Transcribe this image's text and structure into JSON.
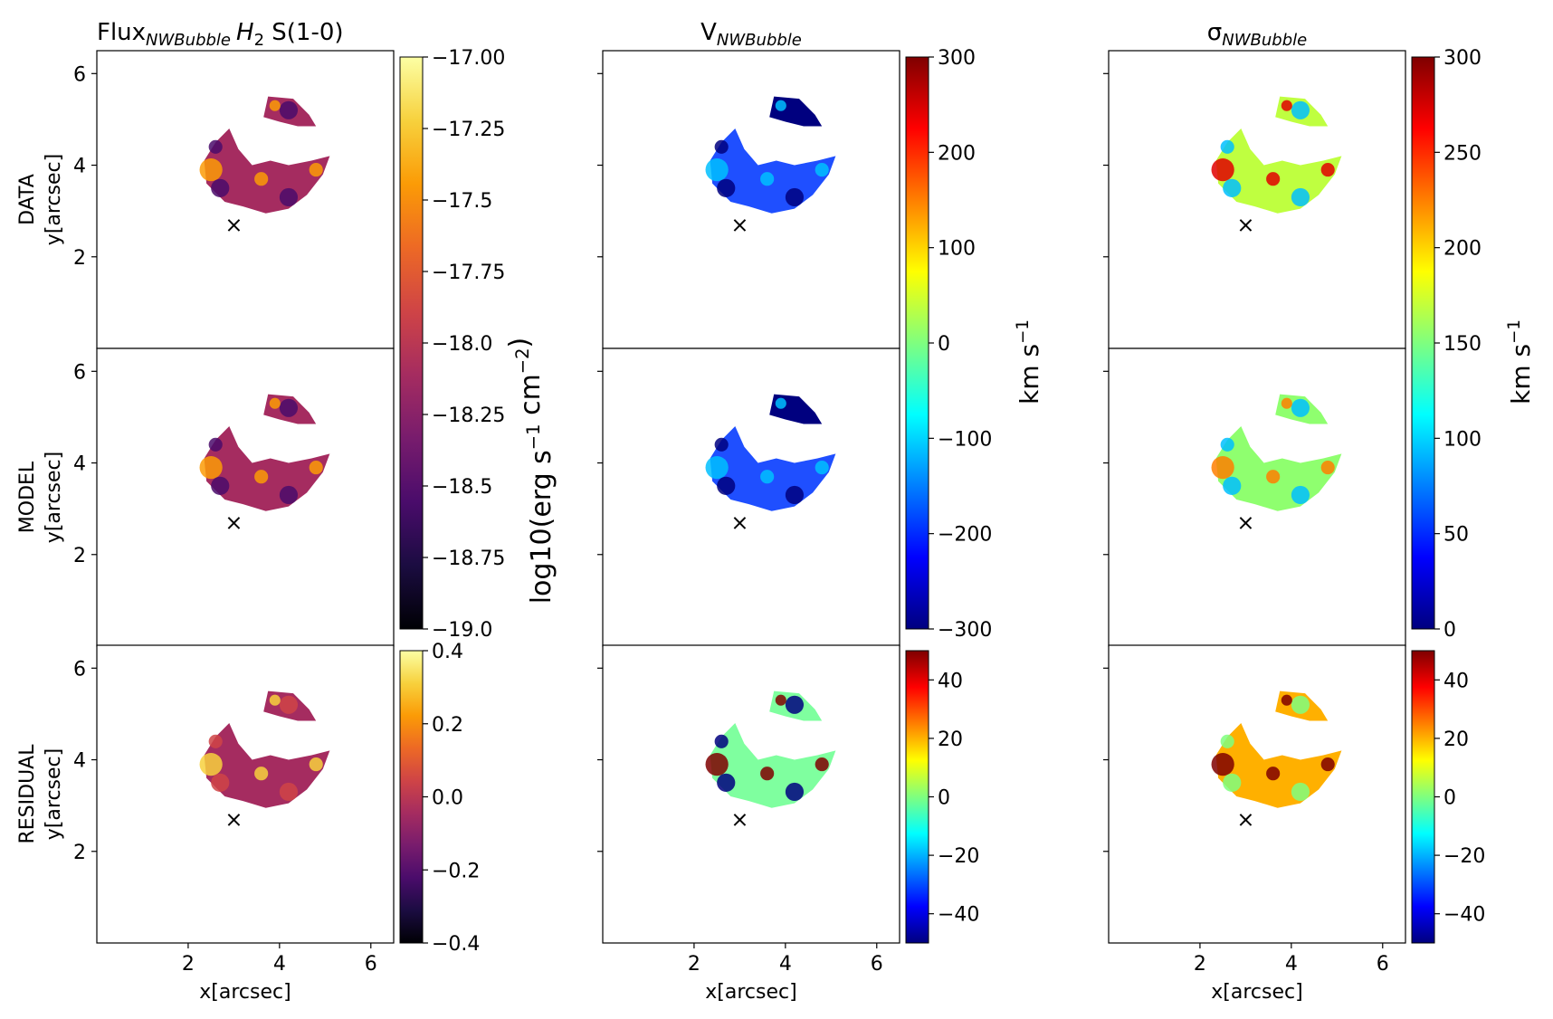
{
  "chart_data": {
    "type": "heatmap",
    "layout": {
      "rows": 3,
      "columns": 3
    },
    "columns": [
      {
        "title": {
          "main": "Flux",
          "sub": "NWBubble",
          "tail_italic": "H",
          "tail_sub": "2",
          "tail": " S(1-0)"
        },
        "colormap": "inferno",
        "colorbars": [
          {
            "span_rows": [
              "DATA",
              "MODEL"
            ],
            "range": [
              -19.0,
              -17.0
            ],
            "ticks": [
              "-17.00",
              "-17.25",
              "-17.5",
              "-17.75",
              "-18.0",
              "-18.25",
              "-18.5",
              "-18.75",
              "-19.0"
            ],
            "tick_values": [
              -17.0,
              -17.25,
              -17.5,
              -17.75,
              -18.0,
              -18.25,
              -18.5,
              -18.75,
              -19.0
            ],
            "label": "log10(erg s⁻¹ cm⁻²)"
          },
          {
            "span_rows": [
              "RESIDUAL"
            ],
            "range": [
              -0.4,
              0.4
            ],
            "ticks": [
              "0.4",
              "0.2",
              "0.0",
              "-0.2",
              "-0.4"
            ],
            "tick_values": [
              0.4,
              0.2,
              0.0,
              -0.2,
              -0.4
            ],
            "label": ""
          }
        ]
      },
      {
        "title": {
          "main": "V",
          "sub": "NWBubble"
        },
        "colormap": "jet",
        "colorbars": [
          {
            "span_rows": [
              "DATA",
              "MODEL"
            ],
            "range": [
              -300,
              300
            ],
            "ticks": [
              "300",
              "200",
              "100",
              "0",
              "-100",
              "-200",
              "-300"
            ],
            "tick_values": [
              300,
              200,
              100,
              0,
              -100,
              -200,
              -300
            ],
            "label": "km s⁻¹"
          },
          {
            "span_rows": [
              "RESIDUAL"
            ],
            "range": [
              -50,
              50
            ],
            "ticks": [
              "40",
              "20",
              "0",
              "-20",
              "-40"
            ],
            "tick_values": [
              40,
              20,
              0,
              -20,
              -40
            ],
            "label": ""
          }
        ]
      },
      {
        "title": {
          "main": "σ",
          "sub": "NWBubble"
        },
        "colormap": "jet",
        "colorbars": [
          {
            "span_rows": [
              "DATA",
              "MODEL"
            ],
            "range": [
              0,
              300
            ],
            "ticks": [
              "300",
              "250",
              "200",
              "150",
              "100",
              "50",
              "0"
            ],
            "tick_values": [
              300,
              250,
              200,
              150,
              100,
              50,
              0
            ],
            "label": "km s⁻¹"
          },
          {
            "span_rows": [
              "RESIDUAL"
            ],
            "range": [
              -50,
              50
            ],
            "ticks": [
              "40",
              "20",
              "0",
              "-20",
              "-40"
            ],
            "tick_values": [
              40,
              20,
              0,
              -20,
              -40
            ],
            "label": ""
          }
        ]
      }
    ],
    "rows": [
      "DATA",
      "MODEL",
      "RESIDUAL"
    ],
    "ylabel": "y[arcsec]",
    "xlabel": "x[arcsec]",
    "xlim": [
      0,
      6.5
    ],
    "ylim": [
      0,
      6.5
    ],
    "xticks": [
      "2",
      "4",
      "6"
    ],
    "yticks": [
      "2",
      "4",
      "6"
    ],
    "center_marker": {
      "symbol": "×",
      "x": 3.0,
      "y": 2.7
    },
    "grid": false
  }
}
